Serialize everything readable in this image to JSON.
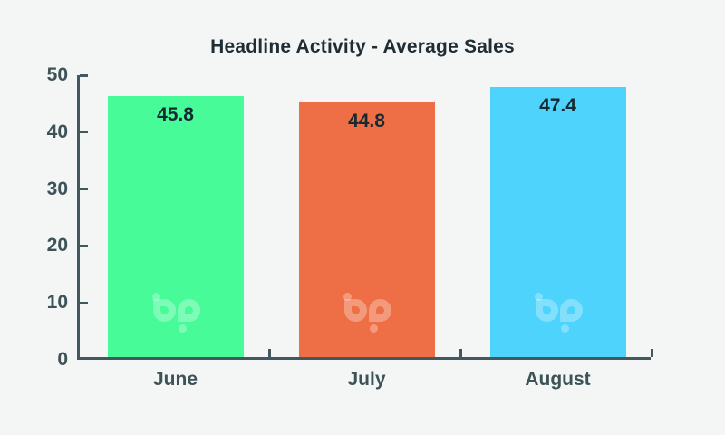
{
  "page": {
    "background_color": "#f4f5f5"
  },
  "chart_data": {
    "type": "bar",
    "title": "Headline Activity - Average Sales",
    "categories": [
      "June",
      "July",
      "August"
    ],
    "values": [
      45.8,
      44.8,
      47.4
    ],
    "value_labels": [
      "45.8",
      "44.8",
      "47.4"
    ],
    "bar_colors": [
      "#47fb99",
      "#ee6f45",
      "#4ed3fc"
    ],
    "xlabel": "",
    "ylabel": "",
    "ylim": [
      0,
      50
    ],
    "yticks": [
      0,
      10,
      20,
      30,
      40,
      50
    ],
    "grid": false,
    "legend": false,
    "title_color": "#1f2e35",
    "axis_color": "#42585e",
    "tick_label_color": "#3d5358",
    "value_label_color": "#152a31",
    "watermark": {
      "name": "bp-logo",
      "color": "rgba(255,255,255,0.3)"
    }
  }
}
